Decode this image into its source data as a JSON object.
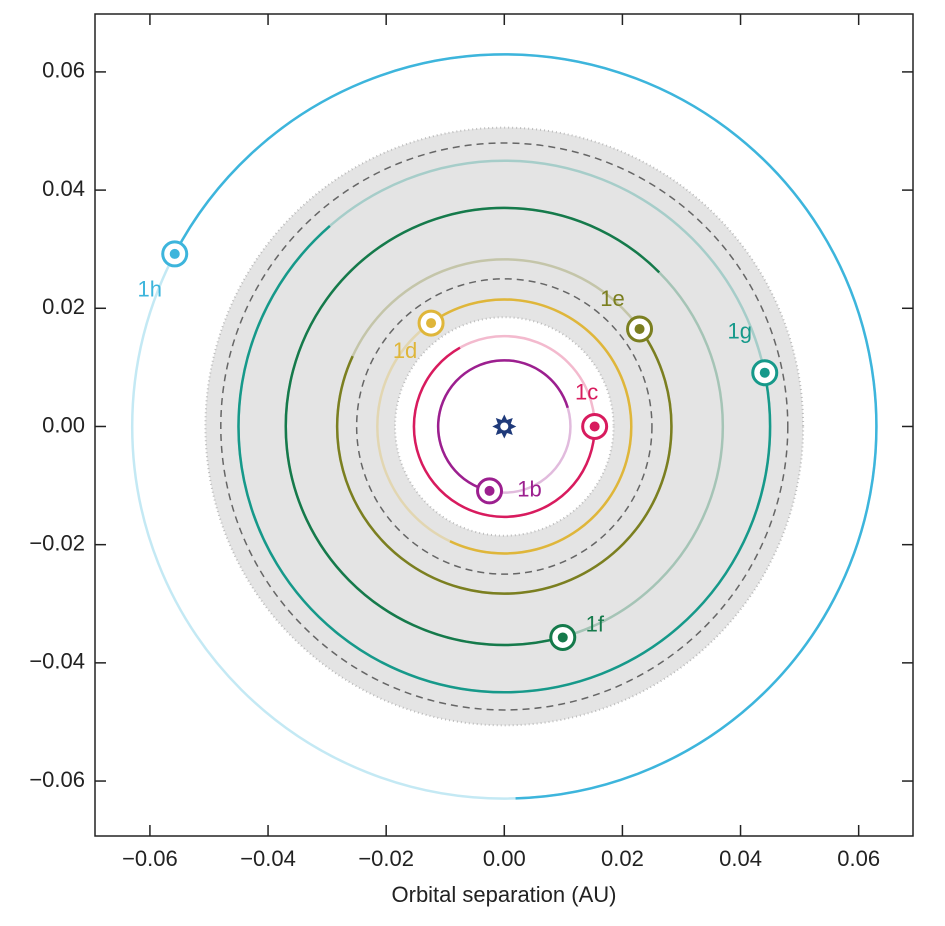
{
  "chart_data": {
    "type": "scatter",
    "x_label": "Orbital separation (AU)",
    "xlim": [
      -0.0693,
      0.0692
    ],
    "ylim": [
      -0.0693,
      0.0698
    ],
    "xticks": [
      {
        "value": -0.06,
        "label": "−0.06"
      },
      {
        "value": -0.04,
        "label": "−0.04"
      },
      {
        "value": -0.02,
        "label": "−0.02"
      },
      {
        "value": 0,
        "label": "0.00"
      },
      0.02,
      0.04,
      0.06
    ],
    "yticks": [
      {
        "value": -0.06,
        "label": "−0.06"
      },
      {
        "value": -0.04,
        "label": "−0.04"
      },
      {
        "value": -0.02,
        "label": "−0.02"
      },
      {
        "value": 0,
        "label": "0.00"
      },
      0.02,
      0.04,
      0.06
    ],
    "star": {
      "x": 0,
      "y": 0,
      "color": "#1f3a7a"
    },
    "habitable_zone": {
      "inner": 0.0185,
      "outer": 0.0506,
      "dashed_inner": 0.025,
      "dashed_outer": 0.048,
      "color": "#e4e4e4"
    },
    "series": [
      {
        "name": "1b",
        "color": "#9c1f8f",
        "x": [
          -0.0025
        ],
        "y": [
          -0.0109
        ],
        "orbit_radius": 0.0112
      },
      {
        "name": "1c",
        "color": "#d81b5e",
        "x": [
          0.0153
        ],
        "y": [
          0.0
        ],
        "orbit_radius": 0.0153
      },
      {
        "name": "1d",
        "color": "#dfb63a",
        "x": [
          -0.0124
        ],
        "y": [
          0.0175
        ],
        "orbit_radius": 0.0215
      },
      {
        "name": "1e",
        "color": "#7b7f20",
        "x": [
          0.0229
        ],
        "y": [
          0.0165
        ],
        "orbit_radius": 0.0283
      },
      {
        "name": "1f",
        "color": "#157a4b",
        "x": [
          0.0099
        ],
        "y": [
          -0.0357
        ],
        "orbit_radius": 0.037
      },
      {
        "name": "1g",
        "color": "#16998a",
        "x": [
          0.0441
        ],
        "y": [
          0.0091
        ],
        "orbit_radius": 0.045
      },
      {
        "name": "1h",
        "color": "#3db5dc",
        "x": [
          -0.0558
        ],
        "y": [
          0.0292
        ],
        "orbit_radius": 0.063
      }
    ]
  }
}
